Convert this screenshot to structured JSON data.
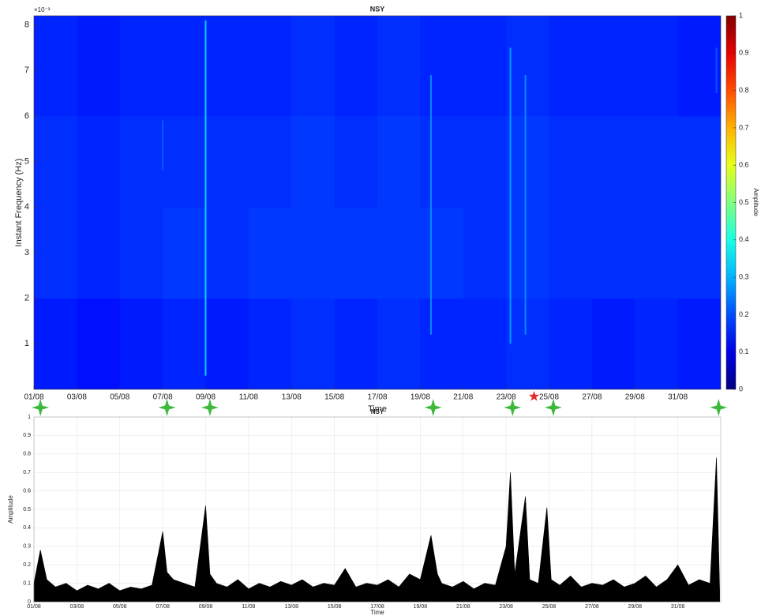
{
  "chart_data": [
    {
      "type": "heatmap",
      "title": "NSY",
      "xlabel": "Time",
      "ylabel": "Instant Frequency (Hz)",
      "y_multiplier": "×10⁻³",
      "colorbar_label": "Amplitude",
      "clim": [
        0,
        1
      ],
      "cticks": [
        0,
        0.1,
        0.2,
        0.3,
        0.4,
        0.5,
        0.6,
        0.7,
        0.8,
        0.9,
        1
      ],
      "xlim": [
        1,
        33
      ],
      "ylim": [
        0,
        8.2
      ],
      "xticks": [
        {
          "value": 1,
          "label": "01/08"
        },
        {
          "value": 3,
          "label": "03/08"
        },
        {
          "value": 5,
          "label": "05/08"
        },
        {
          "value": 7,
          "label": "07/08"
        },
        {
          "value": 9,
          "label": "09/08"
        },
        {
          "value": 11,
          "label": "11/08"
        },
        {
          "value": 13,
          "label": "13/08"
        },
        {
          "value": 15,
          "label": "15/08"
        },
        {
          "value": 17,
          "label": "17/08"
        },
        {
          "value": 19,
          "label": "19/08"
        },
        {
          "value": 21,
          "label": "21/08"
        },
        {
          "value": 23,
          "label": "23/08"
        },
        {
          "value": 25,
          "label": "25/08"
        },
        {
          "value": 27,
          "label": "27/08"
        },
        {
          "value": 29,
          "label": "29/08"
        },
        {
          "value": 31,
          "label": "31/08"
        }
      ],
      "yticks": [
        1,
        2,
        3,
        4,
        5,
        6,
        7,
        8
      ],
      "xbins": [
        1,
        3,
        5,
        7,
        9,
        11,
        13,
        15,
        17,
        19,
        21,
        23,
        25,
        27,
        29,
        31,
        33
      ],
      "ybins": [
        0,
        2,
        4,
        6,
        8.2
      ],
      "z": [
        [
          0.15,
          0.14,
          0.15,
          0.16,
          0.15,
          0.16,
          0.17,
          0.16,
          0.17,
          0.16,
          0.16,
          0.17,
          0.16,
          0.15,
          0.16,
          0.15
        ],
        [
          0.17,
          0.16,
          0.17,
          0.18,
          0.17,
          0.18,
          0.18,
          0.18,
          0.18,
          0.18,
          0.17,
          0.18,
          0.17,
          0.17,
          0.17,
          0.17
        ],
        [
          0.17,
          0.16,
          0.17,
          0.17,
          0.17,
          0.17,
          0.18,
          0.17,
          0.18,
          0.17,
          0.17,
          0.18,
          0.17,
          0.17,
          0.17,
          0.17
        ],
        [
          0.16,
          0.15,
          0.16,
          0.16,
          0.16,
          0.16,
          0.17,
          0.16,
          0.17,
          0.16,
          0.16,
          0.17,
          0.16,
          0.16,
          0.16,
          0.15
        ]
      ],
      "ridges": [
        {
          "x": 9.0,
          "y": [
            0.3,
            8.1
          ],
          "value": 0.36
        },
        {
          "x": 7.0,
          "y": [
            4.8,
            5.9
          ],
          "value": 0.22
        },
        {
          "x": 19.5,
          "y": [
            1.2,
            6.9
          ],
          "value": 0.28
        },
        {
          "x": 23.2,
          "y": [
            1.0,
            7.5
          ],
          "value": 0.3
        },
        {
          "x": 23.9,
          "y": [
            1.2,
            6.9
          ],
          "value": 0.28
        },
        {
          "x": 32.8,
          "y": [
            6.5,
            7.5
          ],
          "value": 0.22
        }
      ],
      "events": [
        {
          "x": 1.3,
          "color": "#3dba3d"
        },
        {
          "x": 7.2,
          "color": "#3dba3d"
        },
        {
          "x": 9.2,
          "color": "#3dba3d"
        },
        {
          "x": 19.6,
          "color": "#3dba3d"
        },
        {
          "x": 23.3,
          "color": "#3dba3d"
        },
        {
          "x": 25.2,
          "color": "#3dba3d"
        },
        {
          "x": 32.9,
          "color": "#3dba3d"
        },
        {
          "x": 24.3,
          "color": "#e52a2a"
        }
      ]
    },
    {
      "type": "area",
      "title": "NSY",
      "xlabel": "Time",
      "ylabel": "Amplitude",
      "color": "#000000",
      "grid": true,
      "xlim": [
        1,
        33
      ],
      "ylim": [
        0,
        1
      ],
      "xticks": [
        {
          "value": 1,
          "label": "01/08"
        },
        {
          "value": 3,
          "label": "03/08"
        },
        {
          "value": 5,
          "label": "05/08"
        },
        {
          "value": 7,
          "label": "07/08"
        },
        {
          "value": 9,
          "label": "09/08"
        },
        {
          "value": 11,
          "label": "11/08"
        },
        {
          "value": 13,
          "label": "13/08"
        },
        {
          "value": 15,
          "label": "15/08"
        },
        {
          "value": 17,
          "label": "17/08"
        },
        {
          "value": 19,
          "label": "19/08"
        },
        {
          "value": 21,
          "label": "21/08"
        },
        {
          "value": 23,
          "label": "23/08"
        },
        {
          "value": 25,
          "label": "25/08"
        },
        {
          "value": 27,
          "label": "27/08"
        },
        {
          "value": 29,
          "label": "29/08"
        },
        {
          "value": 31,
          "label": "31/08"
        }
      ],
      "yticks": [
        0,
        0.1,
        0.2,
        0.3,
        0.4,
        0.5,
        0.6,
        0.7,
        0.8,
        0.9,
        1
      ],
      "x": [
        1,
        1.3,
        1.6,
        2,
        2.5,
        3,
        3.5,
        4,
        4.5,
        5,
        5.5,
        6,
        6.5,
        7,
        7.2,
        7.5,
        8,
        8.5,
        9,
        9.2,
        9.5,
        10,
        10.5,
        11,
        11.5,
        12,
        12.5,
        13,
        13.5,
        14,
        14.5,
        15,
        15.5,
        16,
        16.5,
        17,
        17.5,
        18,
        18.5,
        19,
        19.5,
        19.8,
        20,
        20.5,
        21,
        21.5,
        22,
        22.5,
        23,
        23.2,
        23.4,
        23.9,
        24.1,
        24.5,
        24.9,
        25.1,
        25.5,
        26,
        26.5,
        27,
        27.5,
        28,
        28.5,
        29,
        29.5,
        30,
        30.5,
        31,
        31.5,
        32,
        32.5,
        32.8,
        32.95
      ],
      "values": [
        0.1,
        0.28,
        0.12,
        0.08,
        0.1,
        0.06,
        0.09,
        0.07,
        0.1,
        0.06,
        0.08,
        0.07,
        0.09,
        0.38,
        0.16,
        0.12,
        0.1,
        0.08,
        0.52,
        0.15,
        0.1,
        0.08,
        0.12,
        0.07,
        0.1,
        0.08,
        0.11,
        0.09,
        0.12,
        0.08,
        0.1,
        0.09,
        0.18,
        0.08,
        0.1,
        0.09,
        0.12,
        0.08,
        0.15,
        0.12,
        0.36,
        0.15,
        0.1,
        0.08,
        0.11,
        0.07,
        0.1,
        0.09,
        0.3,
        0.7,
        0.15,
        0.57,
        0.12,
        0.1,
        0.51,
        0.12,
        0.09,
        0.14,
        0.08,
        0.1,
        0.09,
        0.12,
        0.08,
        0.1,
        0.14,
        0.08,
        0.12,
        0.2,
        0.09,
        0.12,
        0.1,
        0.78,
        0.06
      ]
    }
  ]
}
